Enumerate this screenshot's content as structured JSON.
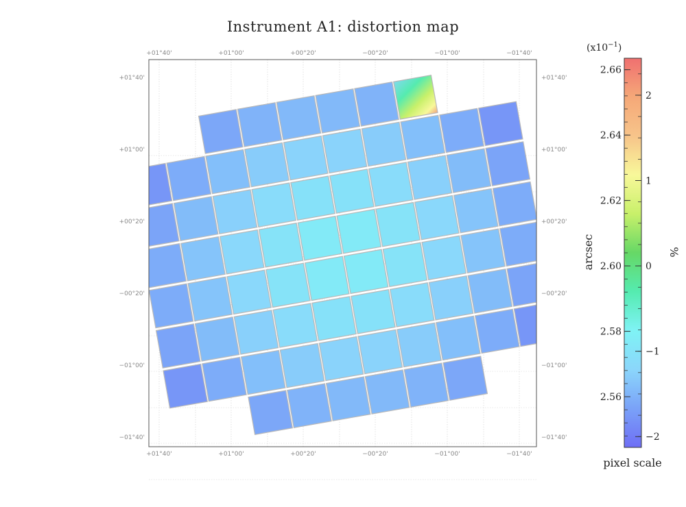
{
  "chart_data": {
    "type": "heatmap",
    "title": "Instrument A1: distortion map",
    "x_ticks": [
      "+01°40'",
      "+01°00'",
      "+00°20'",
      "−00°20'",
      "−01°00'",
      "−01°40'"
    ],
    "y_ticks": [
      "+01°40'",
      "+01°00'",
      "+00°20'",
      "−00°20'",
      "−01°00'",
      "−01°40'"
    ],
    "x_range_arcmin": [
      120,
      -120
    ],
    "y_range_arcmin": [
      -120,
      120
    ],
    "grid": true,
    "detector_rows": [
      6,
      10,
      10,
      10,
      10,
      10,
      10,
      6
    ],
    "colorbar": {
      "title": "pixel scale",
      "left_label": "arcsec",
      "right_label": "%",
      "multiplier": "(x10",
      "multiplier_exp": "−1",
      "multiplier_close": ")",
      "left_ticks": [
        2.56,
        2.58,
        2.6,
        2.62,
        2.64,
        2.66
      ],
      "left_tick_labels": [
        "2.56",
        "2.58",
        "2.60",
        "2.62",
        "2.64",
        "2.66"
      ],
      "right_ticks": [
        -2,
        -1,
        0,
        1,
        2
      ],
      "right_tick_labels": [
        "−2",
        "−1",
        "0",
        "1",
        "2"
      ],
      "range_arcsec": [
        2.5445,
        2.6635
      ],
      "colors": [
        "#6e6ef5",
        "#7aa2f8",
        "#8bd6fb",
        "#7ff3f5",
        "#55ebb0",
        "#66d866",
        "#c8f06a",
        "#f8f89a",
        "#f7c48a",
        "#f5a878",
        "#f07070"
      ]
    },
    "values_arcsec_min": 2.546,
    "values_arcsec_center": 2.578,
    "values_arcsec_max": 2.64
  }
}
